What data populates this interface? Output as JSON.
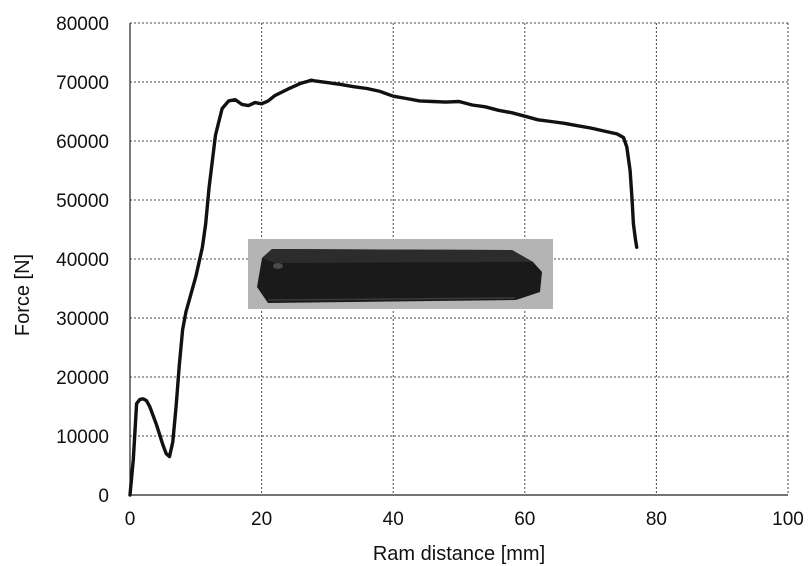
{
  "chart_data": {
    "type": "line",
    "title": "",
    "xlabel": "Ram distance [mm]",
    "ylabel": "Force  [N]",
    "xlim": [
      0,
      100
    ],
    "ylim": [
      0,
      80000
    ],
    "x_ticks": [
      "0",
      "20",
      "40",
      "60",
      "80",
      "100"
    ],
    "y_ticks": [
      "0",
      "10000",
      "20000",
      "30000",
      "40000",
      "50000",
      "60000",
      "70000",
      "80000"
    ],
    "grid": true,
    "legend": "none",
    "inset_image": "photograph of the tested specimen (dark elongated bar)",
    "series": [
      {
        "x": [
          0,
          0.5,
          1.0,
          1.5,
          2.0,
          2.5,
          3.0,
          4.0,
          5.0,
          5.5,
          6.0,
          6.5,
          7.0,
          7.5,
          8.0,
          8.5,
          9.0,
          10.0,
          11.0,
          11.5,
          12.0,
          13.0,
          14.0,
          15.0,
          16.0,
          17.0,
          18.0,
          19.0,
          20.0,
          21.0,
          22.0,
          24.0,
          26.0,
          27.0,
          27.5,
          28.0,
          30.0,
          32.0,
          34.0,
          36.0,
          38.0,
          40.0,
          42.0,
          44.0,
          46.0,
          48.0,
          50.0,
          52.0,
          54.0,
          56.0,
          58.0,
          60.0,
          62.0,
          64.0,
          66.0,
          68.0,
          70.0,
          72.0,
          74.0,
          75.0,
          75.5,
          76.0,
          76.3,
          76.5,
          76.8,
          77.0
        ],
        "y": [
          0,
          6000,
          15500,
          16200,
          16300,
          16000,
          15000,
          12000,
          8500,
          7000,
          6500,
          9000,
          15000,
          22000,
          28000,
          31000,
          33000,
          37000,
          42000,
          46000,
          52000,
          61000,
          65500,
          66800,
          67000,
          66200,
          66000,
          66500,
          66300,
          66800,
          67700,
          68800,
          69800,
          70100,
          70300,
          70200,
          69900,
          69600,
          69200,
          68900,
          68400,
          67600,
          67200,
          66800,
          66700,
          66600,
          66700,
          66100,
          65800,
          65200,
          64800,
          64200,
          63600,
          63300,
          63000,
          62600,
          62200,
          61700,
          61200,
          60600,
          59000,
          55000,
          50000,
          46000,
          43500,
          42000
        ]
      }
    ]
  }
}
